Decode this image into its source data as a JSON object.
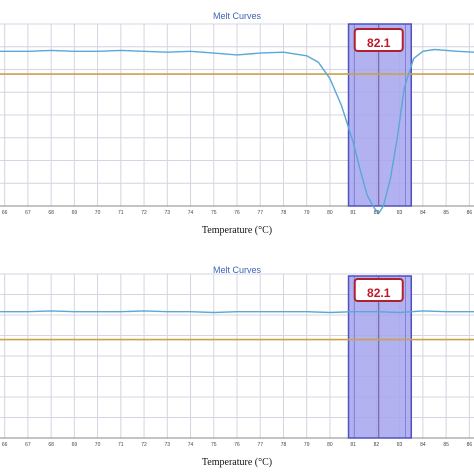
{
  "chart_data": [
    {
      "type": "line",
      "title": "Melt Curves",
      "xlabel": "Temperature (°C)",
      "ylabel": "",
      "xlim": [
        65.8,
        86.2
      ],
      "ylim": [
        -1,
        1
      ],
      "x_ticks": [
        "66",
        "67",
        "68",
        "69",
        "70",
        "71",
        "72",
        "73",
        "74",
        "75",
        "76",
        "77",
        "78",
        "79",
        "80",
        "81",
        "82",
        "83",
        "84",
        "85",
        "86"
      ],
      "grid": true,
      "threshold": 0.45,
      "highlight_range": [
        80.8,
        83.5
      ],
      "peak_marker": {
        "x": 82.1,
        "label": "82.1"
      },
      "series": [
        {
          "color": "#5aa7d8",
          "x": [
            65.8,
            67,
            68,
            69,
            70,
            71,
            72,
            73,
            74,
            75,
            76,
            77,
            78,
            79,
            79.5,
            80,
            80.5,
            81,
            81.3,
            81.6,
            81.9,
            82.1,
            82.3,
            82.6,
            82.9,
            83.2,
            83.6,
            84,
            84.5,
            85,
            85.5,
            86.2
          ],
          "y": [
            0.7,
            0.7,
            0.71,
            0.7,
            0.7,
            0.71,
            0.7,
            0.69,
            0.7,
            0.68,
            0.66,
            0.68,
            0.69,
            0.65,
            0.58,
            0.4,
            0.1,
            -0.3,
            -0.6,
            -0.88,
            -1.02,
            -1.08,
            -1.0,
            -0.7,
            -0.25,
            0.3,
            0.62,
            0.7,
            0.72,
            0.71,
            0.7,
            0.69
          ]
        }
      ]
    },
    {
      "type": "line",
      "title": "Melt Curves",
      "xlabel": "Temperature (°C)",
      "ylabel": "",
      "xlim": [
        65.8,
        86.2
      ],
      "ylim": [
        -1,
        1
      ],
      "x_ticks": [
        "66",
        "67",
        "68",
        "69",
        "70",
        "71",
        "72",
        "73",
        "74",
        "75",
        "76",
        "77",
        "78",
        "79",
        "80",
        "81",
        "82",
        "83",
        "84",
        "85",
        "86"
      ],
      "grid": true,
      "threshold": 0.2,
      "highlight_range": [
        80.8,
        83.5
      ],
      "peak_marker": {
        "x": 82.1,
        "label": "82.1"
      },
      "series": [
        {
          "color": "#5aa7d8",
          "x": [
            65.8,
            67,
            68,
            69,
            70,
            71,
            72,
            73,
            74,
            75,
            76,
            77,
            78,
            79,
            80,
            81,
            82,
            83,
            84,
            85,
            86.2
          ],
          "y": [
            0.54,
            0.54,
            0.55,
            0.54,
            0.54,
            0.54,
            0.55,
            0.54,
            0.54,
            0.53,
            0.54,
            0.54,
            0.54,
            0.54,
            0.53,
            0.54,
            0.54,
            0.53,
            0.55,
            0.54,
            0.54
          ]
        }
      ]
    }
  ],
  "colors": {
    "grid": "#d4d4e2",
    "threshold": "#c9a24a",
    "highlight_fill": "#a4a4ee",
    "highlight_stroke": "#5050c0",
    "label_box_stroke": "#b0202e",
    "axis": "#888888"
  }
}
